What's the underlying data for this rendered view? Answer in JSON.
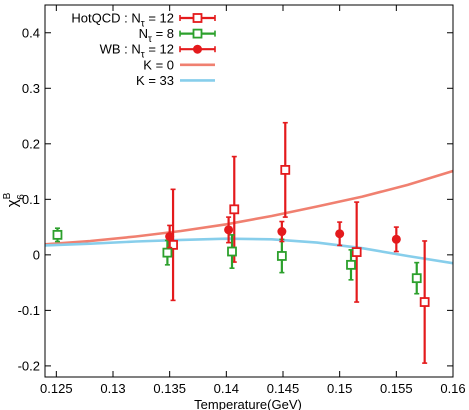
{
  "chart_data": {
    "type": "scatter",
    "xlabel": "Temperature(GeV)",
    "ylabel_main": "χ",
    "ylabel_sup": "B",
    "ylabel_sub": "6",
    "xlim": [
      0.124,
      0.16
    ],
    "ylim": [
      -0.22,
      0.45
    ],
    "xticks": [
      0.125,
      0.13,
      0.135,
      0.14,
      0.145,
      0.15,
      0.155,
      0.16
    ],
    "xtick_labels": [
      "0.125",
      "0.13",
      "0.135",
      "0.14",
      "0.145",
      "0.15",
      "0.155",
      "0.16"
    ],
    "yticks": [
      -0.2,
      -0.1,
      0,
      0.1,
      0.2,
      0.3,
      0.4
    ],
    "ytick_labels": [
      "-0.2",
      "-0.1",
      "0",
      "0.1",
      "0.2",
      "0.3",
      "0.4"
    ],
    "grid": false,
    "legend_position": "top-left",
    "series": [
      {
        "name": "HotQCD : N",
        "name_sub": "τ",
        "name_suffix": " = 12",
        "kind": "points",
        "marker": "open-square",
        "color": "#e41a1c",
        "points": [
          {
            "x": 0.1353,
            "y": 0.018,
            "ylo": -0.082,
            "yhi": 0.118
          },
          {
            "x": 0.1407,
            "y": 0.082,
            "ylo": -0.013,
            "yhi": 0.177
          },
          {
            "x": 0.1452,
            "y": 0.153,
            "ylo": 0.068,
            "yhi": 0.238
          },
          {
            "x": 0.1515,
            "y": 0.005,
            "ylo": -0.085,
            "yhi": 0.095
          },
          {
            "x": 0.1575,
            "y": -0.085,
            "ylo": -0.195,
            "yhi": 0.025
          }
        ]
      },
      {
        "name": "N",
        "name_sub": "τ",
        "name_suffix": " = 8",
        "kind": "points",
        "marker": "open-square",
        "color": "#2ca02c",
        "points": [
          {
            "x": 0.1251,
            "y": 0.036,
            "ylo": 0.024,
            "yhi": 0.048
          },
          {
            "x": 0.1348,
            "y": 0.004,
            "ylo": -0.018,
            "yhi": 0.026
          },
          {
            "x": 0.1405,
            "y": 0.006,
            "ylo": -0.024,
            "yhi": 0.036
          },
          {
            "x": 0.1449,
            "y": -0.002,
            "ylo": -0.032,
            "yhi": 0.028
          },
          {
            "x": 0.151,
            "y": -0.018,
            "ylo": -0.045,
            "yhi": 0.009
          },
          {
            "x": 0.1568,
            "y": -0.042,
            "ylo": -0.07,
            "yhi": -0.014
          }
        ]
      },
      {
        "name": "WB : N",
        "name_sub": "τ",
        "name_suffix": " = 12",
        "kind": "points",
        "marker": "filled-circle",
        "color": "#e41a1c",
        "points": [
          {
            "x": 0.135,
            "y": 0.033,
            "ylo": 0.013,
            "yhi": 0.053
          },
          {
            "x": 0.1402,
            "y": 0.045,
            "ylo": 0.022,
            "yhi": 0.068
          },
          {
            "x": 0.1449,
            "y": 0.042,
            "ylo": 0.024,
            "yhi": 0.06
          },
          {
            "x": 0.15,
            "y": 0.038,
            "ylo": 0.017,
            "yhi": 0.059
          },
          {
            "x": 0.155,
            "y": 0.028,
            "ylo": 0.006,
            "yhi": 0.05
          }
        ]
      },
      {
        "name": "K = 0",
        "kind": "line",
        "color": "#f08070",
        "x": [
          0.124,
          0.128,
          0.132,
          0.136,
          0.14,
          0.144,
          0.148,
          0.152,
          0.156,
          0.16
        ],
        "y": [
          0.019,
          0.025,
          0.033,
          0.043,
          0.055,
          0.07,
          0.087,
          0.105,
          0.126,
          0.151
        ]
      },
      {
        "name": "K = 33",
        "kind": "line",
        "color": "#87ceeb",
        "x": [
          0.124,
          0.128,
          0.132,
          0.136,
          0.14,
          0.144,
          0.148,
          0.152,
          0.156,
          0.16
        ],
        "y": [
          0.017,
          0.02,
          0.024,
          0.027,
          0.029,
          0.028,
          0.022,
          0.012,
          -0.002,
          -0.015
        ]
      }
    ]
  }
}
